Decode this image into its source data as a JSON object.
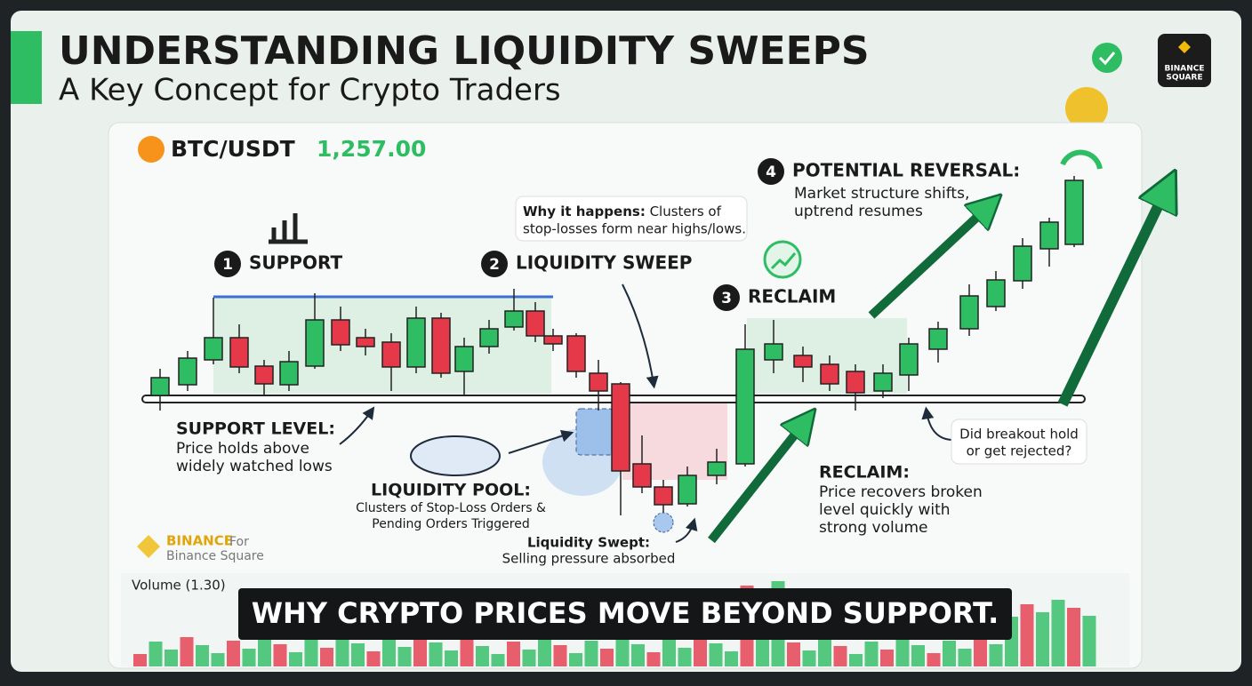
{
  "header": {
    "title": "UNDERSTANDING LIQUIDITY SWEEPS",
    "subtitle": "A Key Concept for Crypto Traders",
    "badge": [
      "BINANCE",
      "SQUARE"
    ]
  },
  "ticker": {
    "pair": "BTC/USDT",
    "price": "1,257.00"
  },
  "steps": [
    {
      "number": "1",
      "label": "SUPPORT"
    },
    {
      "number": "2",
      "label": "LIQUIDITY SWEEP"
    },
    {
      "number": "3",
      "label": "RECLAIM"
    },
    {
      "number": "4",
      "label": "POTENTIAL REVERSAL:",
      "lines": [
        "Market structure shifts,",
        "uptrend resumes"
      ]
    }
  ],
  "notes": {
    "why": {
      "lead": "Why it happens:",
      "lines": [
        " Clusters of",
        "stop-losses form near highs/lows."
      ]
    },
    "support_level": {
      "title": "SUPPORT LEVEL:",
      "lines": [
        "Price holds above",
        "widely watched lows"
      ]
    },
    "liquidity_pool": {
      "title": "LIQUIDITY POOL:",
      "lines": [
        "Clusters of Stop-Loss Orders &",
        "Pending Orders Triggered"
      ]
    },
    "liquidity_swept": {
      "title": "Liquidity Swept:",
      "lines": [
        "Selling pressure absorbed"
      ]
    },
    "reclaim": {
      "title": "RECLAIM:",
      "lines": [
        "Price recovers broken",
        "level quickly with",
        "strong volume"
      ]
    },
    "breakout": {
      "lines": [
        "Did breakout hold",
        "or get rejected?"
      ]
    }
  },
  "watermark": {
    "brand": "BINANCE",
    "for": "For",
    "sub": "Binance Square"
  },
  "volume_label": "Volume (1.30)",
  "caption": "WHY CRYPTO PRICES MOVE BEYOND SUPPORT."
}
